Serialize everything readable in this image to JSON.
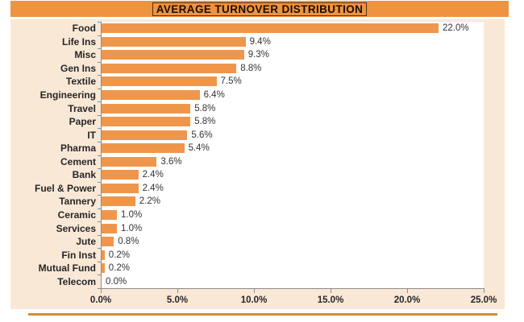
{
  "header": {
    "title": "AVERAGE TURNOVER DISTRIBUTION"
  },
  "chart_data": {
    "type": "bar",
    "orientation": "horizontal",
    "title": "AVERAGE TURNOVER DISTRIBUTION",
    "categories": [
      "Food",
      "Life Ins",
      "Misc",
      "Gen Ins",
      "Textile",
      "Engineering",
      "Travel",
      "Paper",
      "IT",
      "Pharma",
      "Cement",
      "Bank",
      "Fuel & Power",
      "Tannery",
      "Ceramic",
      "Services",
      "Jute",
      "Fin Inst",
      "Mutual Fund",
      "Telecom"
    ],
    "values": [
      22.0,
      9.4,
      9.3,
      8.8,
      7.5,
      6.4,
      5.8,
      5.8,
      5.6,
      5.4,
      3.6,
      2.4,
      2.4,
      2.2,
      1.0,
      1.0,
      0.8,
      0.2,
      0.2,
      0.0
    ],
    "value_labels": [
      "22.0%",
      "9.4%",
      "9.3%",
      "8.8%",
      "7.5%",
      "6.4%",
      "5.8%",
      "5.8%",
      "5.6%",
      "5.4%",
      "3.6%",
      "2.4%",
      "2.4%",
      "2.2%",
      "1.0%",
      "1.0%",
      "0.8%",
      "0.2%",
      "0.2%",
      "0.0%"
    ],
    "x_axis": {
      "tick_labels": [
        "0.0%",
        "5.0%",
        "10.0%",
        "15.0%",
        "20.0%",
        "25.0%"
      ],
      "min": 0,
      "max": 25,
      "step": 5
    },
    "ylabel": "",
    "xlabel": "",
    "legend": "none",
    "grid": "off",
    "bar_color": "#F0964B"
  },
  "colors": {
    "title_bar_bg": "#EE9340",
    "title_text": "#190E04",
    "chart_bg": "#FAE8D6",
    "plot_bg": "#FFFFFF",
    "bar": "#F0964B",
    "axis": "#8C8C8C",
    "label_text": "#262626",
    "bottom_divider": "#D18F35"
  }
}
